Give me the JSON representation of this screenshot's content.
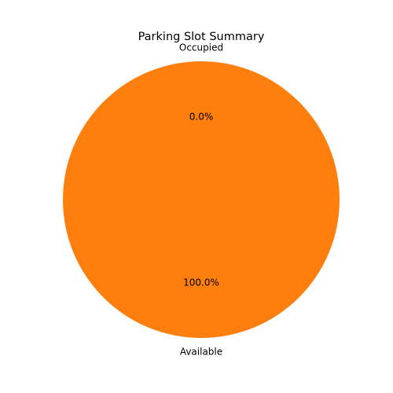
{
  "chart_data": {
    "type": "pie",
    "title": "Parking Slot Summary",
    "slices": [
      {
        "label": "Occupied",
        "value": 0,
        "percent_label": "0.0%",
        "color": "#1f77b4"
      },
      {
        "label": "Available",
        "value": 100,
        "percent_label": "100.0%",
        "color": "#ff7f0e"
      }
    ],
    "start_angle_deg": 90,
    "direction": "counterclockwise",
    "legend": "none"
  }
}
